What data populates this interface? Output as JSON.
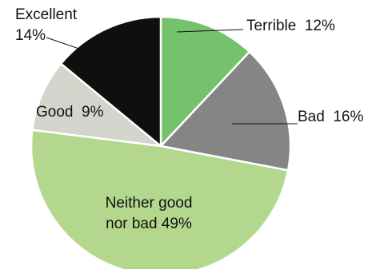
{
  "chart_data": {
    "type": "pie",
    "title": "",
    "slices": [
      {
        "label": "Terrible",
        "value": 12,
        "display": "12%",
        "color": "#74c26b"
      },
      {
        "label": "Bad",
        "value": 16,
        "display": "16%",
        "color": "#858585"
      },
      {
        "label": "Neither good nor bad",
        "value": 49,
        "display": "49%",
        "color": "#b4d78e"
      },
      {
        "label": "Good",
        "value": 9,
        "display": "9%",
        "color": "#d3d4cc"
      },
      {
        "label": "Excellent",
        "value": 14,
        "display": "14%",
        "color": "#0f0f0f"
      }
    ],
    "labels": {
      "terrible": "Terrible  12%",
      "bad": "Bad  16%",
      "neither_line1": "Neither good",
      "neither_line2": "nor bad 49%",
      "good": "Good  9%",
      "excellent_line1": "Excellent",
      "excellent_line2": "14%"
    },
    "legend": "none",
    "start_angle": "12 o'clock, clockwise"
  }
}
